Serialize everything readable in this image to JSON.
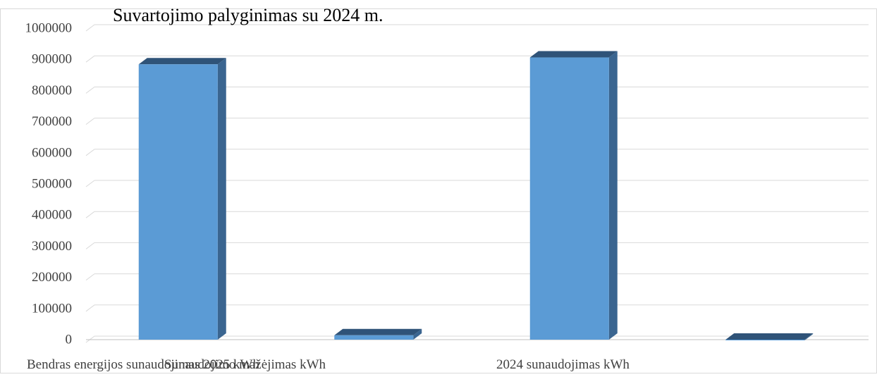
{
  "chart_data": {
    "type": "bar",
    "title": "Suvartojimo palyginimas su 2024 m.",
    "categories": [
      "Bendras energijos sunaudojimas 2025 kWh",
      "Sunaudojimo mažėjimas kWh",
      "2024 sunaudojimas kWh",
      ""
    ],
    "values": [
      884000,
      14000,
      906000,
      -2000
    ],
    "ylim": [
      0,
      1000000
    ],
    "yticks": [
      0,
      100000,
      200000,
      300000,
      400000,
      500000,
      600000,
      700000,
      800000,
      900000,
      1000000
    ],
    "xlabel": "",
    "ylabel": "",
    "grid": true,
    "legend": "none",
    "style": "3d-column",
    "colors": {
      "bar_front": "#5b9bd5",
      "bar_side": "#3a6590",
      "bar_top": "#2f5378",
      "grid": "#d9d9d9",
      "axis": "#bfbfbf",
      "text": "#404040",
      "title": "#000000"
    }
  }
}
